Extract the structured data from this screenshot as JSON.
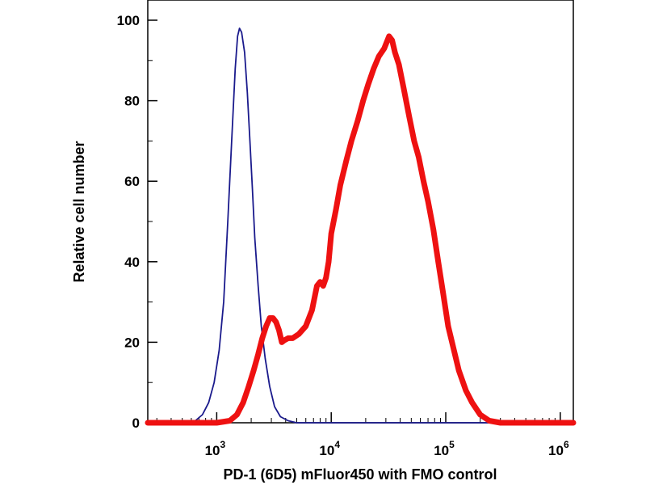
{
  "chart_data": {
    "type": "line",
    "title": "",
    "xlabel": "PD-1 (6D5) mFluor450 with FMO control",
    "ylabel": "Relative cell number",
    "x_scale": "log",
    "xlim": [
      250,
      1300000
    ],
    "ylim": [
      0,
      100
    ],
    "grid": false,
    "legend": "none",
    "y_ticks": [
      {
        "value": 0,
        "label": "0"
      },
      {
        "value": 20,
        "label": "20"
      },
      {
        "value": 40,
        "label": "40"
      },
      {
        "value": 60,
        "label": "60"
      },
      {
        "value": 80,
        "label": "80"
      },
      {
        "value": 100,
        "label": "100"
      }
    ],
    "x_ticks": [
      {
        "value": 1000,
        "base": "10",
        "exponent": "3"
      },
      {
        "value": 10000,
        "base": "10",
        "exponent": "4"
      },
      {
        "value": 100000,
        "base": "10",
        "exponent": "5"
      },
      {
        "value": 1000000,
        "base": "10",
        "exponent": "6"
      }
    ],
    "series": [
      {
        "role": "FMO control",
        "color": "#1a1a8c",
        "line_width": "thin",
        "x": [
          250,
          500,
          650,
          750,
          850,
          950,
          1050,
          1150,
          1250,
          1350,
          1450,
          1520,
          1580,
          1650,
          1750,
          1850,
          1950,
          2050,
          2150,
          2300,
          2450,
          2650,
          2900,
          3200,
          3600,
          4200,
          5000,
          1300000
        ],
        "y": [
          0,
          0,
          0.5,
          2,
          5,
          10,
          18,
          30,
          50,
          70,
          88,
          96,
          98,
          97,
          92,
          82,
          70,
          58,
          46,
          34,
          24,
          16,
          9,
          4,
          1.5,
          0.5,
          0,
          0
        ]
      },
      {
        "role": "PD-1 (6D5) mFluor450",
        "color": "#ee1111",
        "line_width": "thick",
        "x": [
          250,
          1000,
          1300,
          1500,
          1700,
          1900,
          2100,
          2300,
          2500,
          2700,
          2900,
          3100,
          3300,
          3500,
          3700,
          3900,
          4200,
          4600,
          5200,
          6000,
          6800,
          7500,
          8000,
          8500,
          9000,
          9500,
          10000,
          11000,
          12000,
          13500,
          15000,
          17000,
          19000,
          21000,
          23500,
          26000,
          29000,
          32000,
          34000,
          36000,
          39000,
          43000,
          48000,
          53000,
          58000,
          64000,
          70000,
          78000,
          86000,
          95000,
          105000,
          118000,
          130000,
          150000,
          170000,
          200000,
          240000,
          300000,
          400000,
          600000,
          1300000
        ],
        "y": [
          0,
          0,
          0.5,
          2,
          5,
          9,
          13,
          17,
          21,
          24,
          26,
          26,
          25,
          23,
          20,
          20.5,
          21,
          21,
          22,
          24,
          28,
          34,
          35,
          34,
          36,
          40,
          47,
          53,
          59,
          65,
          70,
          75,
          80,
          84,
          88,
          91,
          93,
          96,
          95,
          92,
          89,
          83,
          76,
          70,
          66,
          60,
          55,
          48,
          40,
          32,
          24,
          18,
          13,
          8,
          5,
          2,
          0.5,
          0,
          0,
          0,
          0
        ]
      }
    ]
  }
}
